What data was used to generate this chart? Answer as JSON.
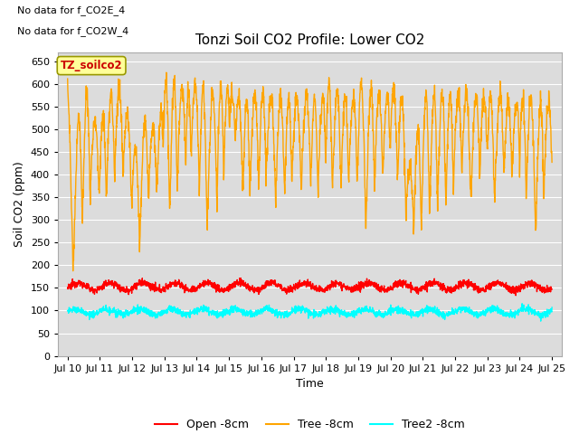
{
  "title": "Tonzi Soil CO2 Profile: Lower CO2",
  "xlabel": "Time",
  "ylabel": "Soil CO2 (ppm)",
  "ylim": [
    0,
    670
  ],
  "yticks": [
    0,
    50,
    100,
    150,
    200,
    250,
    300,
    350,
    400,
    450,
    500,
    550,
    600,
    650
  ],
  "xlim_start": 9.7,
  "xlim_end": 25.3,
  "xtick_positions": [
    10,
    11,
    12,
    13,
    14,
    15,
    16,
    17,
    18,
    19,
    20,
    21,
    22,
    23,
    24,
    25
  ],
  "xtick_labels": [
    "Jul 10",
    "Jul 11",
    "Jul 12",
    "Jul 13",
    "Jul 14",
    "Jul 15",
    "Jul 16",
    "Jul 17",
    "Jul 18",
    "Jul 19",
    "Jul 20",
    "Jul 21",
    "Jul 22",
    "Jul 23",
    "Jul 24",
    "Jul 25"
  ],
  "no_data_text1": "No data for f_CO2E_4",
  "no_data_text2": "No data for f_CO2W_4",
  "legend_box_text": "TZ_soilco2",
  "legend_box_color": "#FFFF99",
  "legend_box_border": "#999900",
  "color_open": "#FF0000",
  "color_tree": "#FFA500",
  "color_tree2": "#00FFFF",
  "label_open": "Open -8cm",
  "label_tree": "Tree -8cm",
  "label_tree2": "Tree2 -8cm",
  "bg_color": "#DCDCDC",
  "grid_color": "#FFFFFF",
  "title_fontsize": 11,
  "axis_label_fontsize": 9,
  "tick_fontsize": 8,
  "linewidth_tree": 1.0,
  "linewidth_open": 1.0,
  "linewidth_tree2": 1.0
}
